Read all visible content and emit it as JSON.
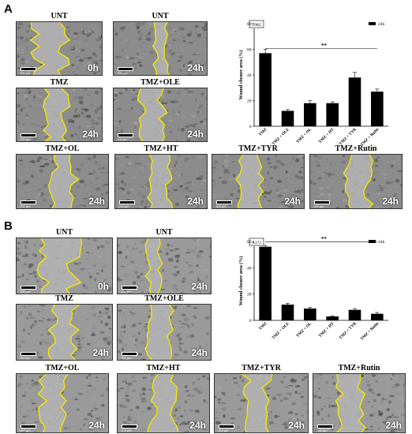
{
  "panels": [
    {
      "letter": "A",
      "images": [
        {
          "label": "UNT",
          "time": "0h",
          "scale": "100 µm"
        },
        {
          "label": "UNT",
          "time": "24h",
          "scale": "100 µm"
        },
        {
          "label": "TMZ",
          "time": "24h",
          "scale": "100 µm"
        },
        {
          "label": "TMZ+OLE",
          "time": "24h",
          "scale": "100 µm"
        },
        {
          "label": "TMZ+OL",
          "time": "24h",
          "scale": "100 µm"
        },
        {
          "label": "TMZ+HT",
          "time": "24h",
          "scale": "100 µm"
        },
        {
          "label": "TMZ+TYR",
          "time": "24h",
          "scale": "100 µm"
        },
        {
          "label": "TMZ+Rutin",
          "time": "24h",
          "scale": "100 µm"
        }
      ],
      "chart_data": {
        "type": "bar",
        "cell_line": "T98G",
        "legend": "24h",
        "ylabel": "Wound closure area (%)",
        "ylim": [
          0,
          80
        ],
        "yticks": [
          "0",
          "20",
          "40",
          "60",
          "80"
        ],
        "categories": [
          "TMZ",
          "TMZ + OLE",
          "TMZ + OL",
          "TMZ + HT",
          "TMZ + TYR",
          "TMZ + Rutin"
        ],
        "values": [
          57,
          12,
          18,
          18,
          38,
          27
        ],
        "errors": [
          3,
          1,
          2,
          1,
          4,
          2
        ],
        "significance": "**",
        "color": "#000000"
      }
    },
    {
      "letter": "B",
      "images": [
        {
          "label": "UNT",
          "time": "0h",
          "scale": "100 µm"
        },
        {
          "label": "UNT",
          "time": "24h",
          "scale": "100 µm"
        },
        {
          "label": "TMZ",
          "time": "24h",
          "scale": "100 µm"
        },
        {
          "label": "TMZ+OLE",
          "time": "24h",
          "scale": "100 µm"
        },
        {
          "label": "TMZ+OL",
          "time": "24h",
          "scale": "100 µm"
        },
        {
          "label": "TMZ+HT",
          "time": "24h",
          "scale": "100 µm"
        },
        {
          "label": "TMZ+TYR",
          "time": "24h",
          "scale": "100 µm"
        },
        {
          "label": "TMZ+Rutin",
          "time": "24h",
          "scale": "100 µm"
        }
      ],
      "chart_data": {
        "type": "bar",
        "cell_line": "A172",
        "legend": "24h",
        "ylabel": "Wound closure area (%)",
        "ylim": [
          0,
          60
        ],
        "yticks": [
          "0",
          "20",
          "40",
          "60"
        ],
        "categories": [
          "TMZ",
          "TMZ + OLE",
          "TMZ + OL",
          "TMZ + HT",
          "TMZ + TYR",
          "TMZ + Rutin"
        ],
        "values": [
          56,
          12,
          9,
          3,
          8,
          5
        ],
        "errors": [
          1,
          1,
          1,
          0.5,
          1,
          1
        ],
        "significance": "**",
        "color": "#000000"
      }
    }
  ]
}
